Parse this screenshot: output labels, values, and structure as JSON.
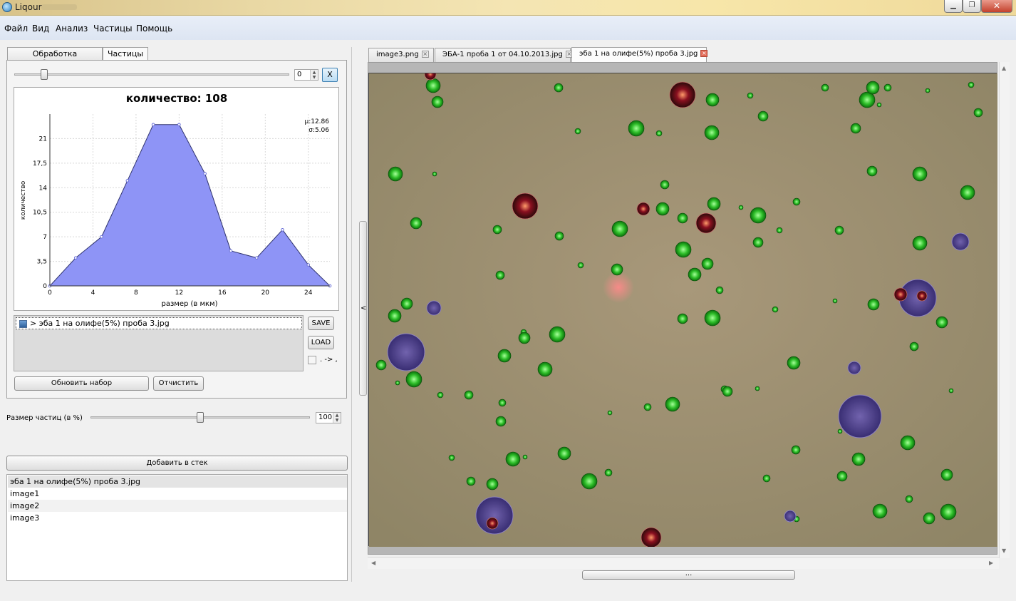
{
  "window": {
    "title": "Liqour"
  },
  "menu": [
    "Файл",
    "Вид",
    "Анализ",
    "Частицы",
    "Помощь"
  ],
  "left": {
    "tabs": [
      "Обработка изображения",
      "Частицы"
    ],
    "threshold": {
      "value": "0",
      "fraction": 0.11
    },
    "x_button": "X",
    "list_item": "> эба 1 на олифе(5%) проба 3.jpg",
    "save_button": "SAVE",
    "load_button": "LOAD",
    "arrow_label": ". -> ,",
    "update_button": "Обновить набор",
    "clear_button": "Отчистить",
    "size_label": "Размер частиц (в %)",
    "size": {
      "value": "100",
      "fraction": 0.5
    },
    "add_stack_button": "Добавить в стек",
    "stack": [
      "эба 1 на олифе(5%) проба 3.jpg",
      "image1",
      "image2",
      "image3"
    ]
  },
  "chart_data": {
    "type": "area",
    "title": "количество: 108",
    "xlabel": "размер (в мкм)",
    "ylabel": "количество",
    "xlim": [
      0,
      26
    ],
    "ylim": [
      0,
      24.5
    ],
    "xticks": [
      "0",
      "4",
      "8",
      "12",
      "16",
      "20",
      "24"
    ],
    "yticks": [
      "0",
      "3,5",
      "7",
      "10,5",
      "14",
      "17,5",
      "21"
    ],
    "stats": [
      "μ:12.86",
      "σ:5.06"
    ],
    "x": [
      0,
      2.4,
      4.8,
      7.2,
      9.6,
      12,
      14.4,
      16.8,
      19.2,
      21.6,
      24,
      26
    ],
    "y": [
      0,
      4,
      7,
      15,
      23,
      23,
      16,
      5,
      4,
      8,
      3,
      0
    ],
    "color": "#8e94f6",
    "grid": true
  },
  "right": {
    "tabs": [
      {
        "label": "image3.png",
        "active": false
      },
      {
        "label": "ЭБА-1 проба 1 от 04.10.2013.jpg",
        "active": false
      },
      {
        "label": "эба 1 на олифе(5%) проба 3.jpg",
        "active": true
      }
    ],
    "close_icon": "×",
    "collapse_arrow": "<",
    "bottom_handle": "..."
  }
}
